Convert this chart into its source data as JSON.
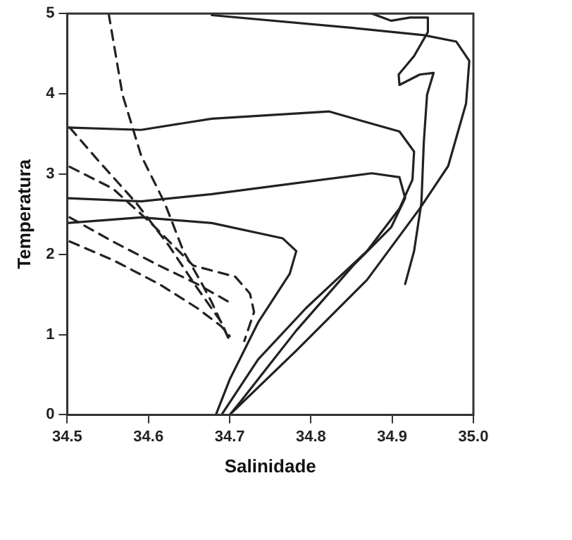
{
  "chart_data": {
    "type": "line",
    "xlabel": "Salinidade",
    "ylabel": "Temperatura",
    "xlim": [
      34.5,
      35.0
    ],
    "ylim": [
      0,
      5
    ],
    "xticks": [
      34.5,
      34.6,
      34.7,
      34.8,
      34.9,
      {
        "value": 35,
        "label": "35.0"
      }
    ],
    "yticks": [
      0,
      1,
      2,
      3,
      4,
      5
    ],
    "grid": false,
    "legend": false,
    "marker": "none",
    "series": [
      {
        "color": "#222222",
        "line_style": "solid",
        "x": [
          34.5,
          34.591,
          34.678,
          34.822,
          34.909,
          34.927,
          34.925,
          34.909,
          34.869,
          34.794,
          34.735,
          34.69
        ],
        "values": [
          3.58,
          3.55,
          3.69,
          3.78,
          3.53,
          3.28,
          2.93,
          2.57,
          2.04,
          1.33,
          0.69,
          0
        ]
      },
      {
        "color": "#222222",
        "line_style": "solid",
        "x": [
          34.5,
          34.591,
          34.678,
          34.875,
          34.909,
          34.916,
          34.899,
          34.852,
          34.782,
          34.713,
          34.7
        ],
        "values": [
          2.7,
          2.66,
          2.75,
          3.01,
          2.96,
          2.7,
          2.34,
          1.86,
          1.05,
          0.16,
          0
        ]
      },
      {
        "color": "#222222",
        "line_style": "solid",
        "x": [
          34.5,
          34.591,
          34.678,
          34.765,
          34.782,
          34.774,
          34.735,
          34.7,
          34.683
        ],
        "values": [
          2.39,
          2.46,
          2.39,
          2.2,
          2.04,
          1.76,
          1.15,
          0.44,
          0
        ]
      },
      {
        "color": "#222222",
        "line_style": "solid",
        "x": [
          34.678,
          34.852,
          34.939,
          34.979,
          34.995,
          34.991,
          34.969,
          34.934,
          34.869,
          34.782,
          34.7
        ],
        "values": [
          4.98,
          4.82,
          4.73,
          4.65,
          4.41,
          3.88,
          3.1,
          2.57,
          1.68,
          0.8,
          0
        ]
      },
      {
        "color": "#222222",
        "line_style": "solid",
        "x": [
          34.875,
          34.899,
          34.922,
          34.944,
          34.944,
          34.927,
          34.908,
          34.909,
          34.934,
          34.951,
          34.943,
          34.939,
          34.936,
          34.927,
          34.916
        ],
        "values": [
          5.0,
          4.91,
          4.95,
          4.95,
          4.77,
          4.47,
          4.24,
          4.11,
          4.24,
          4.26,
          3.99,
          3.4,
          2.64,
          2.04,
          1.63
        ]
      },
      {
        "color": "#222222",
        "line_style": "dashed",
        "x": [
          34.551,
          34.568,
          34.591,
          34.62,
          34.643,
          34.666,
          34.678,
          34.7
        ],
        "values": [
          5.0,
          3.99,
          3.23,
          2.64,
          2.04,
          1.63,
          1.4,
          0.92
        ]
      },
      {
        "color": "#222222",
        "line_style": "dashed",
        "x": [
          34.503,
          34.538,
          34.585,
          34.625,
          34.66,
          34.69,
          34.7
        ],
        "values": [
          3.58,
          3.17,
          2.64,
          2.11,
          1.58,
          1.15,
          0.92
        ]
      },
      {
        "color": "#222222",
        "line_style": "dashed",
        "x": [
          34.503,
          34.556,
          34.603,
          34.655,
          34.707,
          34.725,
          34.73,
          34.718
        ],
        "values": [
          3.09,
          2.82,
          2.39,
          1.86,
          1.72,
          1.51,
          1.28,
          0.92
        ]
      },
      {
        "color": "#222222",
        "line_style": "dashed",
        "x": [
          34.503,
          34.556,
          34.613,
          34.66,
          34.7
        ],
        "values": [
          2.46,
          2.16,
          1.86,
          1.63,
          1.4
        ]
      },
      {
        "color": "#222222",
        "line_style": "dashed",
        "x": [
          34.503,
          34.556,
          34.613,
          34.66,
          34.69,
          34.7
        ],
        "values": [
          2.16,
          1.93,
          1.63,
          1.33,
          1.1,
          0.98
        ]
      }
    ]
  }
}
